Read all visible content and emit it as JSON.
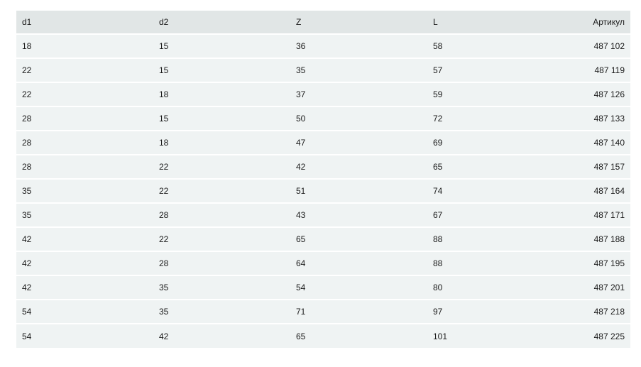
{
  "table": {
    "headers": [
      "d1",
      "d2",
      "Z",
      "L",
      "Артикул"
    ],
    "rows": [
      [
        "18",
        "15",
        "36",
        "58",
        "487 102"
      ],
      [
        "22",
        "15",
        "35",
        "57",
        "487 119"
      ],
      [
        "22",
        "18",
        "37",
        "59",
        "487 126"
      ],
      [
        "28",
        "15",
        "50",
        "72",
        "487 133"
      ],
      [
        "28",
        "18",
        "47",
        "69",
        "487 140"
      ],
      [
        "28",
        "22",
        "42",
        "65",
        "487 157"
      ],
      [
        "35",
        "22",
        "51",
        "74",
        "487 164"
      ],
      [
        "35",
        "28",
        "43",
        "67",
        "487 171"
      ],
      [
        "42",
        "22",
        "65",
        "88",
        "487 188"
      ],
      [
        "42",
        "28",
        "64",
        "88",
        "487 195"
      ],
      [
        "42",
        "35",
        "54",
        "80",
        "487 201"
      ],
      [
        "54",
        "35",
        "71",
        "97",
        "487 218"
      ],
      [
        "54",
        "42",
        "65",
        "101",
        "487 225"
      ]
    ]
  },
  "colors": {
    "header_bg": "#e1e6e6",
    "row_bg": "#eff3f3"
  }
}
